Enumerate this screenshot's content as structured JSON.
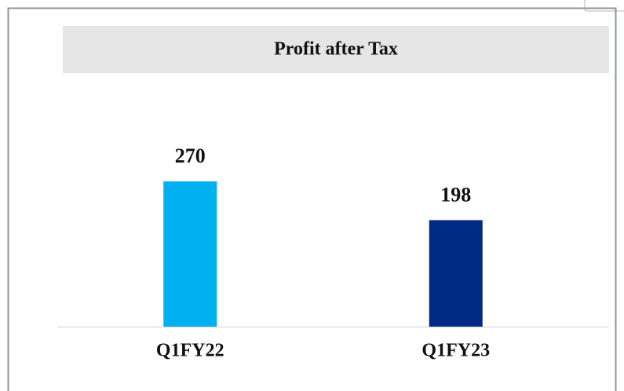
{
  "chart_data": {
    "type": "bar",
    "title": "Profit after Tax",
    "categories": [
      "Q1FY22",
      "Q1FY23"
    ],
    "values": [
      270,
      198
    ],
    "colors": [
      "#00b0f0",
      "#002b84"
    ],
    "ylim": [
      0,
      400
    ]
  }
}
